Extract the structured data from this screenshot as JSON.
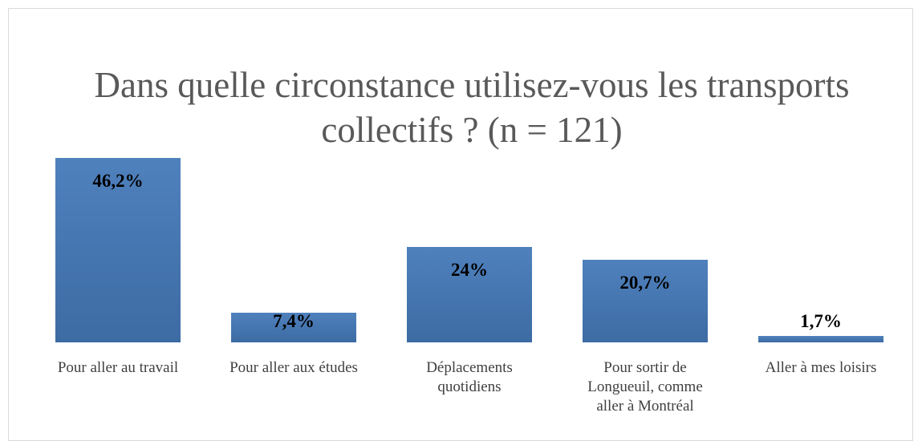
{
  "chart_data": {
    "type": "bar",
    "title": "Dans quelle circonstance utilisez-vous les transports collectifs ? (n = 121)",
    "categories": [
      "Pour aller au travail",
      "Pour aller aux études",
      "Déplacements quotidiens",
      "Pour sortir de Longueuil, comme aller à Montréal",
      "Aller à mes loisirs"
    ],
    "values": [
      46.2,
      7.4,
      24,
      20.7,
      1.7
    ],
    "value_labels": [
      "46,2%",
      "7,4%",
      "24%",
      "20,7%",
      "1,7%"
    ],
    "color": "#4f81bd"
  }
}
